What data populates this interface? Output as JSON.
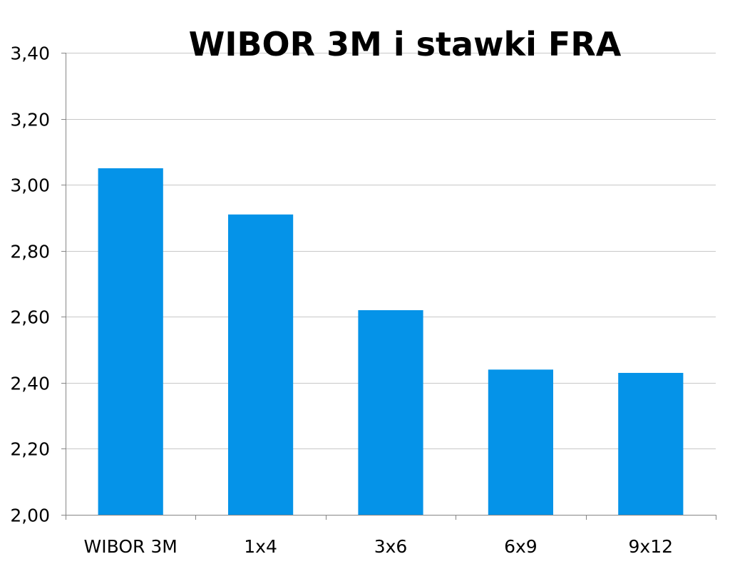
{
  "chart_data": {
    "type": "bar",
    "title": "WIBOR 3M i stawki FRA",
    "categories": [
      "WIBOR 3M",
      "1x4",
      "3x6",
      "6x9",
      "9x12"
    ],
    "values": [
      3.05,
      2.91,
      2.62,
      2.44,
      2.43
    ],
    "ylim": [
      2.0,
      3.4
    ],
    "yticks": [
      2.0,
      2.2,
      2.4,
      2.6,
      2.8,
      3.0,
      3.2,
      3.4
    ],
    "ytick_labels": [
      "2,00",
      "2,20",
      "2,40",
      "2,60",
      "2,80",
      "3,00",
      "3,20",
      "3,40"
    ],
    "grid": true,
    "bar_color": "#0593E8",
    "grid_color": "#c8c8c8",
    "axis_color": "#868686"
  }
}
